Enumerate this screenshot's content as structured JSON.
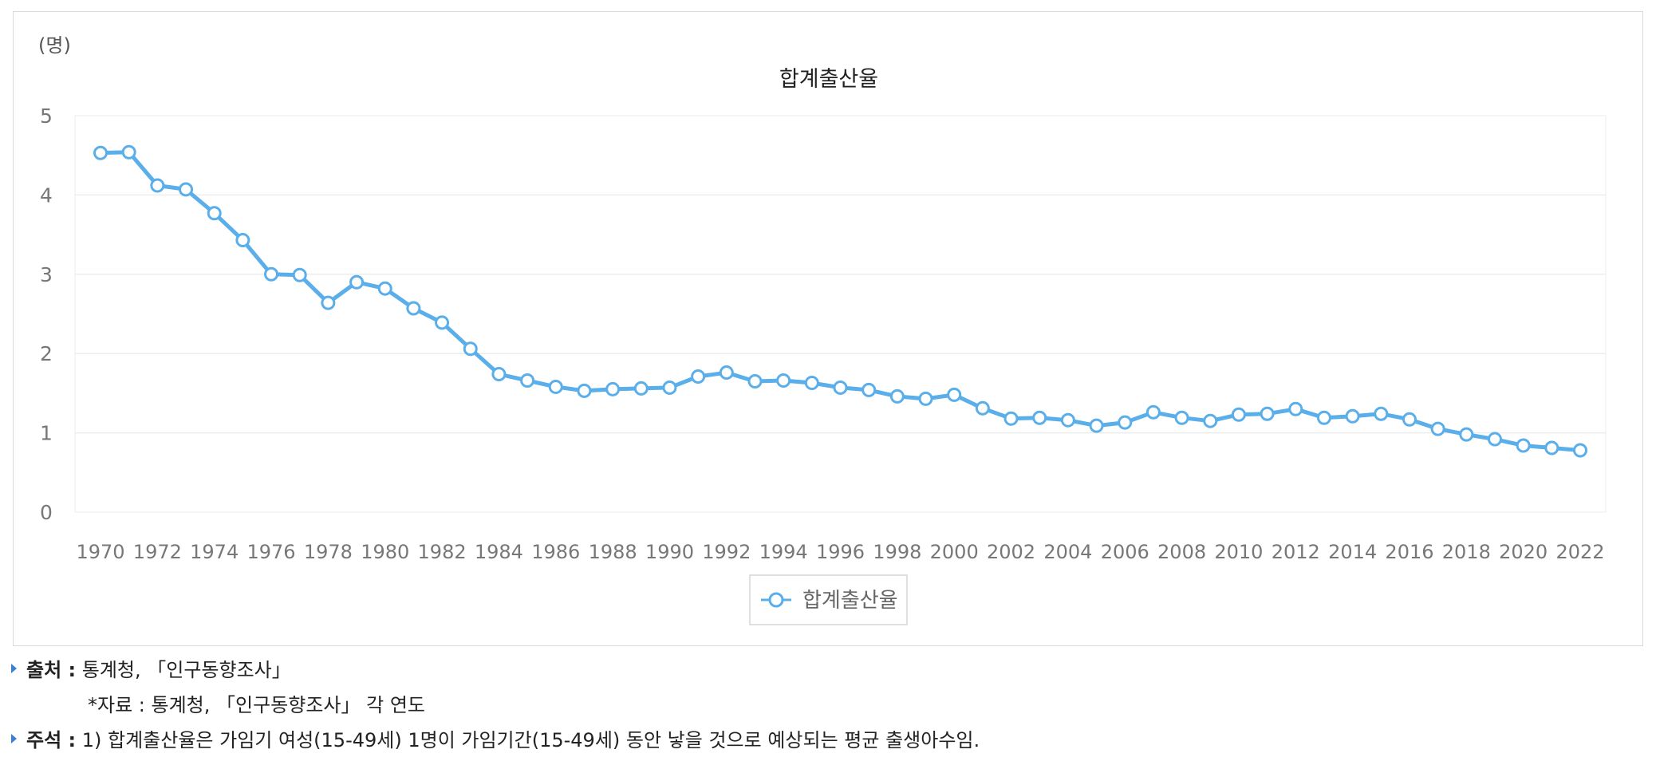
{
  "chart_data": {
    "type": "line",
    "title": "합계출산율",
    "unit_label": "(명)",
    "xlabel": "",
    "ylabel": "",
    "ylim": [
      0,
      5
    ],
    "y_ticks": [
      "0",
      "1",
      "2",
      "3",
      "4",
      "5"
    ],
    "x_tick_labels": [
      "1970",
      "1972",
      "1974",
      "1976",
      "1978",
      "1980",
      "1982",
      "1984",
      "1986",
      "1988",
      "1990",
      "1992",
      "1994",
      "1996",
      "1998",
      "2000",
      "2002",
      "2004",
      "2006",
      "2008",
      "2010",
      "2012",
      "2014",
      "2016",
      "2018",
      "2020",
      "2022"
    ],
    "x": [
      1970,
      1971,
      1972,
      1973,
      1974,
      1975,
      1976,
      1977,
      1978,
      1979,
      1980,
      1981,
      1982,
      1983,
      1984,
      1985,
      1986,
      1987,
      1988,
      1989,
      1990,
      1991,
      1992,
      1993,
      1994,
      1995,
      1996,
      1997,
      1998,
      1999,
      2000,
      2001,
      2002,
      2003,
      2004,
      2005,
      2006,
      2007,
      2008,
      2009,
      2010,
      2011,
      2012,
      2013,
      2014,
      2015,
      2016,
      2017,
      2018,
      2019,
      2020,
      2021,
      2022
    ],
    "grid": true,
    "legend_position": "bottom-center",
    "series": [
      {
        "name": "합계출산율",
        "color": "#5aaeea",
        "values": [
          4.53,
          4.54,
          4.12,
          4.07,
          3.77,
          3.43,
          3.0,
          2.99,
          2.64,
          2.9,
          2.82,
          2.57,
          2.39,
          2.06,
          1.74,
          1.66,
          1.58,
          1.53,
          1.55,
          1.56,
          1.57,
          1.71,
          1.76,
          1.65,
          1.66,
          1.63,
          1.57,
          1.54,
          1.46,
          1.43,
          1.48,
          1.31,
          1.18,
          1.19,
          1.16,
          1.09,
          1.13,
          1.26,
          1.19,
          1.15,
          1.23,
          1.24,
          1.3,
          1.19,
          1.21,
          1.24,
          1.17,
          1.05,
          0.98,
          0.92,
          0.84,
          0.81,
          0.78
        ]
      }
    ]
  },
  "notes": {
    "source_label": "출처 :",
    "source_text": "통계청, 「인구동향조사」",
    "source_sub": "*자료 : 통계청, 「인구동향조사」 각 연도",
    "note_label": "주석 :",
    "note_text": "1) 합계출산율은 가임기 여성(15-49세) 1명이 가임기간(15-49세) 동안 낳을 것으로 예상되는 평균 출생아수임."
  }
}
